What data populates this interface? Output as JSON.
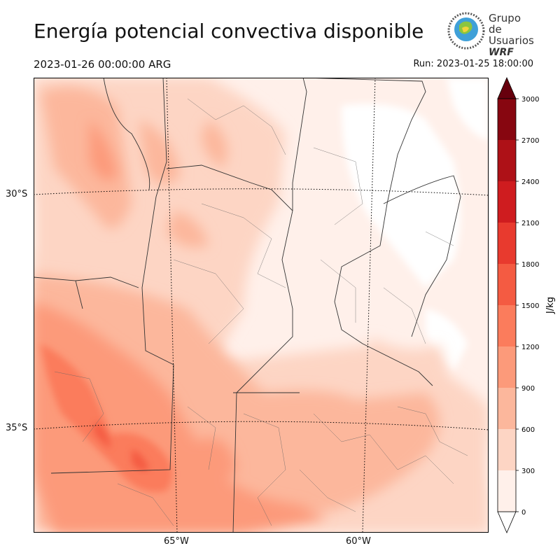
{
  "header": {
    "title": "Energía potencial convectiva disponible",
    "valid_time": "2023-01-26 00:00:00 ARG",
    "run_time": "Run: 2023-01-25 18:00:00"
  },
  "logo": {
    "line1": "Grupo de",
    "line2": "Usuarios",
    "line3": "WRF"
  },
  "axes": {
    "lat_labels": [
      "30°S",
      "35°S"
    ],
    "lon_labels": [
      "65°W",
      "60°W"
    ]
  },
  "colorbar": {
    "label": "J/kg",
    "ticks": [
      "0",
      "300",
      "600",
      "900",
      "1200",
      "1500",
      "1800",
      "2100",
      "2400",
      "2700",
      "3000"
    ],
    "colors": [
      "#fff0ea",
      "#fdd5c4",
      "#fcb79c",
      "#fc9a7a",
      "#fb7c5c",
      "#f45b42",
      "#e83a2e",
      "#cf1c1f",
      "#ae1117",
      "#870610"
    ],
    "over_color": "#67000d"
  }
}
